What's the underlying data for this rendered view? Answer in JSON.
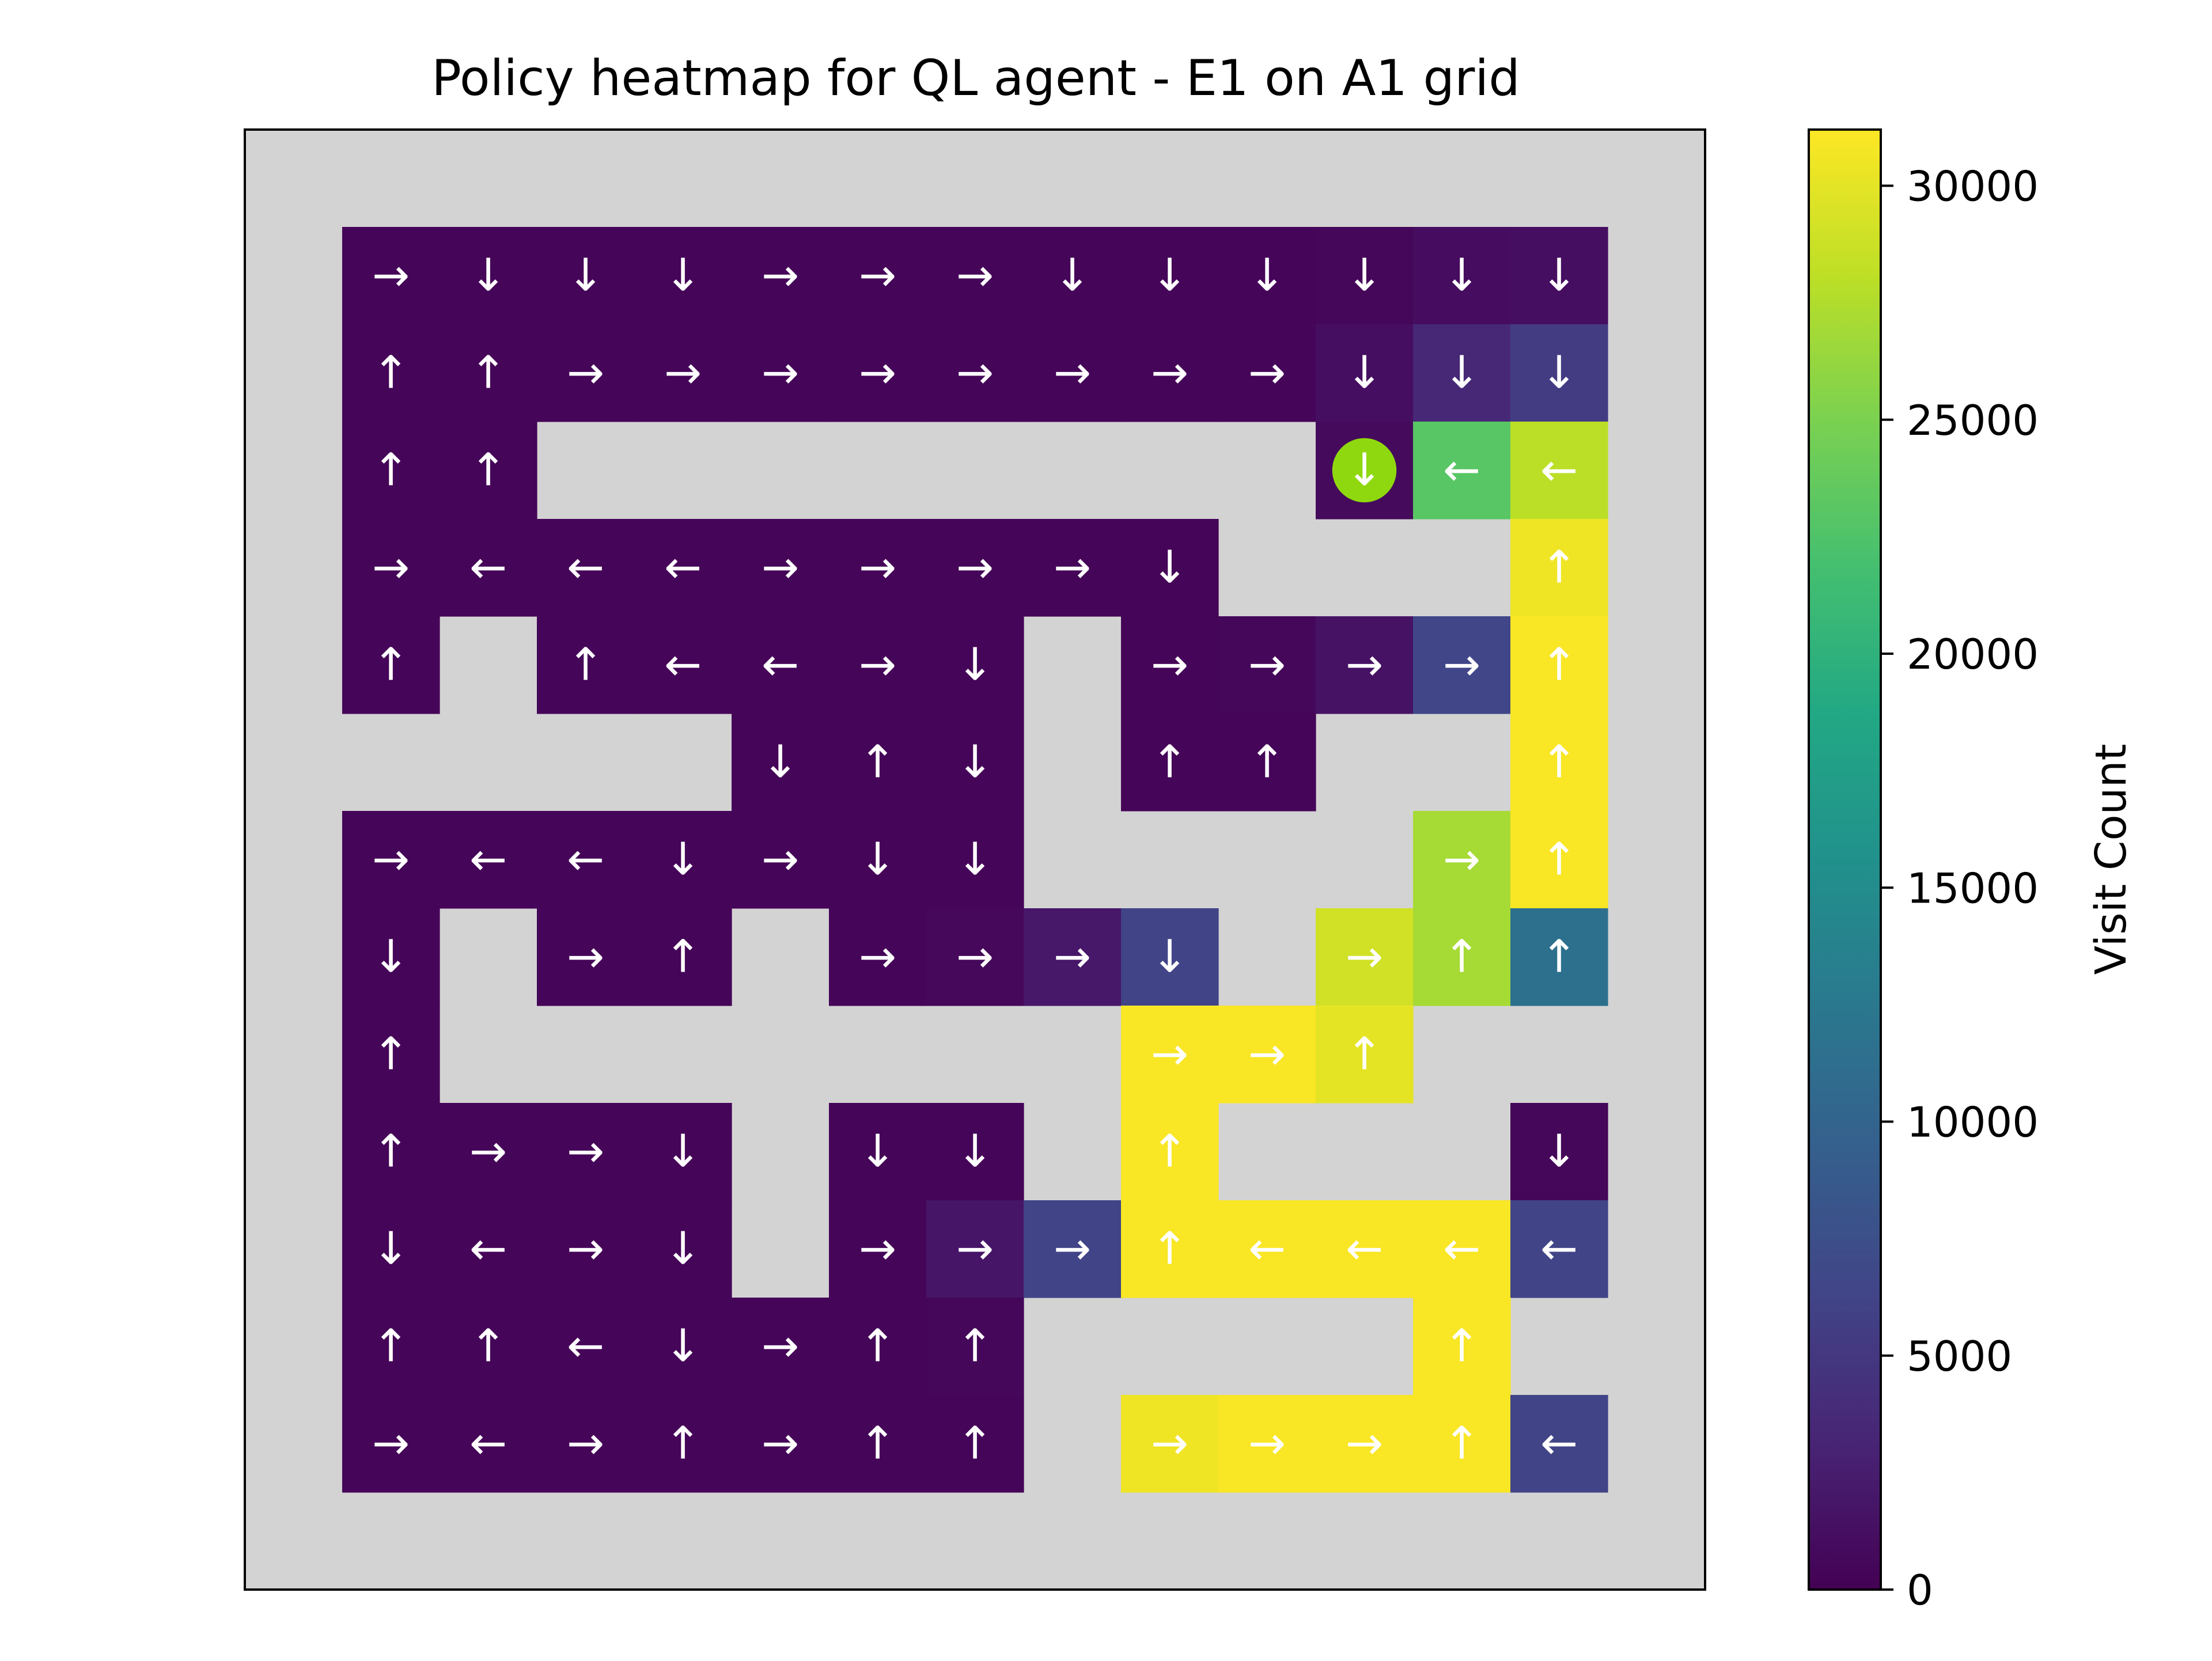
{
  "chart_data": {
    "type": "heatmap",
    "title": "Policy heatmap for QL agent - E1 on A1 grid",
    "colorbar": {
      "label": "Visit Count",
      "colormap": "viridis",
      "range": [
        0,
        31200
      ],
      "ticks": [
        0,
        5000,
        10000,
        15000,
        20000,
        25000,
        30000
      ],
      "tick_labels": [
        "0",
        "5000",
        "10000",
        "15000",
        "20000",
        "25000",
        "30000"
      ]
    },
    "grid": {
      "rows": 15,
      "cols": 15,
      "wall_color": "#d3d3d3",
      "arrow_color": "#ffffff",
      "walls_hidden_axes": true
    },
    "goal": {
      "row": 3,
      "col": 11,
      "color": "#8fd80f"
    },
    "cells": [
      {
        "row": 1,
        "col": 1,
        "action": "→",
        "value": 400
      },
      {
        "row": 1,
        "col": 2,
        "action": "↓",
        "value": 400
      },
      {
        "row": 1,
        "col": 3,
        "action": "↓",
        "value": 400
      },
      {
        "row": 1,
        "col": 4,
        "action": "↓",
        "value": 400
      },
      {
        "row": 1,
        "col": 5,
        "action": "→",
        "value": 400
      },
      {
        "row": 1,
        "col": 6,
        "action": "→",
        "value": 400
      },
      {
        "row": 1,
        "col": 7,
        "action": "→",
        "value": 400
      },
      {
        "row": 1,
        "col": 8,
        "action": "↓",
        "value": 400
      },
      {
        "row": 1,
        "col": 9,
        "action": "↓",
        "value": 400
      },
      {
        "row": 1,
        "col": 10,
        "action": "↓",
        "value": 400
      },
      {
        "row": 1,
        "col": 11,
        "action": "↓",
        "value": 500
      },
      {
        "row": 1,
        "col": 12,
        "action": "↓",
        "value": 1000
      },
      {
        "row": 1,
        "col": 13,
        "action": "↓",
        "value": 1200
      },
      {
        "row": 2,
        "col": 1,
        "action": "↑",
        "value": 400
      },
      {
        "row": 2,
        "col": 2,
        "action": "↑",
        "value": 400
      },
      {
        "row": 2,
        "col": 3,
        "action": "→",
        "value": 400
      },
      {
        "row": 2,
        "col": 4,
        "action": "→",
        "value": 400
      },
      {
        "row": 2,
        "col": 5,
        "action": "→",
        "value": 400
      },
      {
        "row": 2,
        "col": 6,
        "action": "→",
        "value": 400
      },
      {
        "row": 2,
        "col": 7,
        "action": "→",
        "value": 400
      },
      {
        "row": 2,
        "col": 8,
        "action": "→",
        "value": 400
      },
      {
        "row": 2,
        "col": 9,
        "action": "→",
        "value": 400
      },
      {
        "row": 2,
        "col": 10,
        "action": "→",
        "value": 400
      },
      {
        "row": 2,
        "col": 11,
        "action": "↓",
        "value": 1200
      },
      {
        "row": 2,
        "col": 12,
        "action": "↓",
        "value": 3500
      },
      {
        "row": 2,
        "col": 13,
        "action": "↓",
        "value": 5500
      },
      {
        "row": 3,
        "col": 1,
        "action": "↑",
        "value": 400
      },
      {
        "row": 3,
        "col": 2,
        "action": "↑",
        "value": 400
      },
      {
        "row": 3,
        "col": 11,
        "action": "↓",
        "value": 800
      },
      {
        "row": 3,
        "col": 12,
        "action": "←",
        "value": 23000
      },
      {
        "row": 3,
        "col": 13,
        "action": "←",
        "value": 28000
      },
      {
        "row": 4,
        "col": 1,
        "action": "→",
        "value": 400
      },
      {
        "row": 4,
        "col": 2,
        "action": "←",
        "value": 400
      },
      {
        "row": 4,
        "col": 3,
        "action": "←",
        "value": 400
      },
      {
        "row": 4,
        "col": 4,
        "action": "←",
        "value": 400
      },
      {
        "row": 4,
        "col": 5,
        "action": "→",
        "value": 400
      },
      {
        "row": 4,
        "col": 6,
        "action": "→",
        "value": 400
      },
      {
        "row": 4,
        "col": 7,
        "action": "→",
        "value": 400
      },
      {
        "row": 4,
        "col": 8,
        "action": "→",
        "value": 400
      },
      {
        "row": 4,
        "col": 9,
        "action": "↓",
        "value": 400
      },
      {
        "row": 4,
        "col": 13,
        "action": "↑",
        "value": 30500
      },
      {
        "row": 5,
        "col": 1,
        "action": "↑",
        "value": 400
      },
      {
        "row": 5,
        "col": 3,
        "action": "↑",
        "value": 400
      },
      {
        "row": 5,
        "col": 4,
        "action": "←",
        "value": 400
      },
      {
        "row": 5,
        "col": 5,
        "action": "←",
        "value": 400
      },
      {
        "row": 5,
        "col": 6,
        "action": "→",
        "value": 400
      },
      {
        "row": 5,
        "col": 7,
        "action": "↓",
        "value": 400
      },
      {
        "row": 5,
        "col": 9,
        "action": "→",
        "value": 400
      },
      {
        "row": 5,
        "col": 10,
        "action": "→",
        "value": 500
      },
      {
        "row": 5,
        "col": 11,
        "action": "→",
        "value": 1500
      },
      {
        "row": 5,
        "col": 12,
        "action": "→",
        "value": 6500
      },
      {
        "row": 5,
        "col": 13,
        "action": "↑",
        "value": 31000
      },
      {
        "row": 6,
        "col": 5,
        "action": "↓",
        "value": 400
      },
      {
        "row": 6,
        "col": 6,
        "action": "↑",
        "value": 400
      },
      {
        "row": 6,
        "col": 7,
        "action": "↓",
        "value": 400
      },
      {
        "row": 6,
        "col": 9,
        "action": "↑",
        "value": 400
      },
      {
        "row": 6,
        "col": 10,
        "action": "↑",
        "value": 400
      },
      {
        "row": 6,
        "col": 13,
        "action": "↑",
        "value": 31000
      },
      {
        "row": 7,
        "col": 1,
        "action": "→",
        "value": 400
      },
      {
        "row": 7,
        "col": 2,
        "action": "←",
        "value": 400
      },
      {
        "row": 7,
        "col": 3,
        "action": "←",
        "value": 400
      },
      {
        "row": 7,
        "col": 4,
        "action": "↓",
        "value": 400
      },
      {
        "row": 7,
        "col": 5,
        "action": "→",
        "value": 400
      },
      {
        "row": 7,
        "col": 6,
        "action": "↓",
        "value": 400
      },
      {
        "row": 7,
        "col": 7,
        "action": "↓",
        "value": 400
      },
      {
        "row": 7,
        "col": 12,
        "action": "→",
        "value": 27000
      },
      {
        "row": 7,
        "col": 13,
        "action": "↑",
        "value": 31000
      },
      {
        "row": 8,
        "col": 1,
        "action": "↓",
        "value": 400
      },
      {
        "row": 8,
        "col": 3,
        "action": "→",
        "value": 400
      },
      {
        "row": 8,
        "col": 4,
        "action": "↑",
        "value": 400
      },
      {
        "row": 8,
        "col": 6,
        "action": "→",
        "value": 400
      },
      {
        "row": 8,
        "col": 7,
        "action": "→",
        "value": 600
      },
      {
        "row": 8,
        "col": 8,
        "action": "→",
        "value": 2000
      },
      {
        "row": 8,
        "col": 9,
        "action": "↓",
        "value": 6200
      },
      {
        "row": 8,
        "col": 11,
        "action": "→",
        "value": 29000
      },
      {
        "row": 8,
        "col": 12,
        "action": "↑",
        "value": 27000
      },
      {
        "row": 8,
        "col": 13,
        "action": "↑",
        "value": 11500
      },
      {
        "row": 9,
        "col": 1,
        "action": "↑",
        "value": 400
      },
      {
        "row": 9,
        "col": 9,
        "action": "→",
        "value": 31000
      },
      {
        "row": 9,
        "col": 10,
        "action": "→",
        "value": 31000
      },
      {
        "row": 9,
        "col": 11,
        "action": "↑",
        "value": 30000
      },
      {
        "row": 10,
        "col": 1,
        "action": "↑",
        "value": 400
      },
      {
        "row": 10,
        "col": 2,
        "action": "→",
        "value": 400
      },
      {
        "row": 10,
        "col": 3,
        "action": "→",
        "value": 400
      },
      {
        "row": 10,
        "col": 4,
        "action": "↓",
        "value": 400
      },
      {
        "row": 10,
        "col": 6,
        "action": "↓",
        "value": 400
      },
      {
        "row": 10,
        "col": 7,
        "action": "↓",
        "value": 400
      },
      {
        "row": 10,
        "col": 9,
        "action": "↑",
        "value": 31000
      },
      {
        "row": 10,
        "col": 13,
        "action": "↓",
        "value": 500
      },
      {
        "row": 11,
        "col": 1,
        "action": "↓",
        "value": 400
      },
      {
        "row": 11,
        "col": 2,
        "action": "←",
        "value": 400
      },
      {
        "row": 11,
        "col": 3,
        "action": "→",
        "value": 400
      },
      {
        "row": 11,
        "col": 4,
        "action": "↓",
        "value": 400
      },
      {
        "row": 11,
        "col": 6,
        "action": "→",
        "value": 400
      },
      {
        "row": 11,
        "col": 7,
        "action": "→",
        "value": 1800
      },
      {
        "row": 11,
        "col": 8,
        "action": "→",
        "value": 6200
      },
      {
        "row": 11,
        "col": 9,
        "action": "↑",
        "value": 31000
      },
      {
        "row": 11,
        "col": 10,
        "action": "←",
        "value": 31000
      },
      {
        "row": 11,
        "col": 11,
        "action": "←",
        "value": 31000
      },
      {
        "row": 11,
        "col": 12,
        "action": "←",
        "value": 31000
      },
      {
        "row": 11,
        "col": 13,
        "action": "←",
        "value": 6200
      },
      {
        "row": 12,
        "col": 1,
        "action": "↑",
        "value": 400
      },
      {
        "row": 12,
        "col": 2,
        "action": "↑",
        "value": 400
      },
      {
        "row": 12,
        "col": 3,
        "action": "←",
        "value": 400
      },
      {
        "row": 12,
        "col": 4,
        "action": "↓",
        "value": 400
      },
      {
        "row": 12,
        "col": 5,
        "action": "→",
        "value": 400
      },
      {
        "row": 12,
        "col": 6,
        "action": "↑",
        "value": 400
      },
      {
        "row": 12,
        "col": 7,
        "action": "↑",
        "value": 500
      },
      {
        "row": 12,
        "col": 12,
        "action": "↑",
        "value": 31000
      },
      {
        "row": 13,
        "col": 1,
        "action": "→",
        "value": 400
      },
      {
        "row": 13,
        "col": 2,
        "action": "←",
        "value": 400
      },
      {
        "row": 13,
        "col": 3,
        "action": "→",
        "value": 400
      },
      {
        "row": 13,
        "col": 4,
        "action": "↑",
        "value": 400
      },
      {
        "row": 13,
        "col": 5,
        "action": "→",
        "value": 400
      },
      {
        "row": 13,
        "col": 6,
        "action": "↑",
        "value": 400
      },
      {
        "row": 13,
        "col": 7,
        "action": "↑",
        "value": 400
      },
      {
        "row": 13,
        "col": 9,
        "action": "→",
        "value": 30500
      },
      {
        "row": 13,
        "col": 10,
        "action": "→",
        "value": 31000
      },
      {
        "row": 13,
        "col": 11,
        "action": "→",
        "value": 31000
      },
      {
        "row": 13,
        "col": 12,
        "action": "↑",
        "value": 31000
      },
      {
        "row": 13,
        "col": 13,
        "action": "←",
        "value": 6200
      }
    ]
  }
}
